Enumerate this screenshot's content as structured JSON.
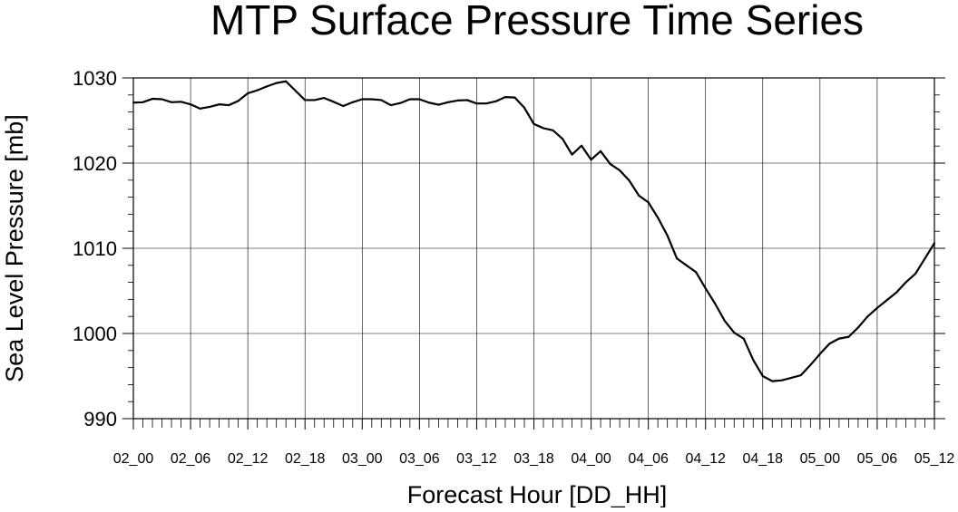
{
  "chart_data": {
    "type": "line",
    "title": "MTP Surface Pressure Time Series",
    "xlabel": "Forecast Hour [DD_HH]",
    "ylabel": "Sea Level Pressure [mb]",
    "ylim": [
      990,
      1030
    ],
    "yticks": [
      990,
      1000,
      1010,
      1020,
      1030
    ],
    "grid": true,
    "x_tick_labels": [
      "02_00",
      "02_06",
      "02_12",
      "02_18",
      "03_00",
      "03_06",
      "03_12",
      "03_18",
      "04_00",
      "04_06",
      "04_12",
      "04_18",
      "05_00",
      "05_06",
      "05_12"
    ],
    "x_hours": [
      0,
      1,
      2,
      3,
      4,
      5,
      6,
      7,
      8,
      9,
      10,
      11,
      12,
      13,
      14,
      15,
      16,
      17,
      18,
      19,
      20,
      21,
      22,
      23,
      24,
      25,
      26,
      27,
      28,
      29,
      30,
      31,
      32,
      33,
      34,
      35,
      36,
      37,
      38,
      39,
      40,
      41,
      42,
      43,
      44,
      45,
      46,
      47,
      48,
      49,
      50,
      51,
      52,
      53,
      54,
      55,
      56,
      57,
      58,
      59,
      60,
      61,
      62,
      63,
      64,
      65,
      66,
      67,
      68,
      69,
      70,
      71,
      72,
      73,
      74,
      75,
      76,
      77,
      78,
      79,
      80,
      81,
      82,
      83,
      84
    ],
    "series": [
      {
        "values": [
          1027.1,
          1027.15,
          1027.55,
          1027.5,
          1027.15,
          1027.2,
          1026.9,
          1026.4,
          1026.6,
          1026.9,
          1026.8,
          1027.3,
          1028.2,
          1028.55,
          1029.0,
          1029.4,
          1029.6,
          1028.5,
          1027.4,
          1027.4,
          1027.65,
          1027.2,
          1026.7,
          1027.15,
          1027.5,
          1027.5,
          1027.4,
          1026.8,
          1027.05,
          1027.5,
          1027.5,
          1027.1,
          1026.85,
          1027.15,
          1027.35,
          1027.4,
          1027.0,
          1027.0,
          1027.25,
          1027.75,
          1027.7,
          1026.5,
          1024.6,
          1024.1,
          1023.85,
          1022.85,
          1021.0,
          1022.05,
          1020.4,
          1021.4,
          1019.9,
          1019.15,
          1017.95,
          1016.2,
          1015.4,
          1013.6,
          1011.5,
          1008.8,
          1008.0,
          1007.2,
          1005.3,
          1003.5,
          1001.5,
          1000.1,
          999.4,
          996.9,
          995.0,
          994.4,
          994.5,
          994.8,
          995.1,
          996.3,
          997.6,
          998.8,
          999.4,
          999.6,
          1000.7,
          1002.0,
          1003.0,
          1003.9,
          1004.8,
          1006.0,
          1007.0,
          1008.8,
          1010.6
        ]
      }
    ]
  }
}
